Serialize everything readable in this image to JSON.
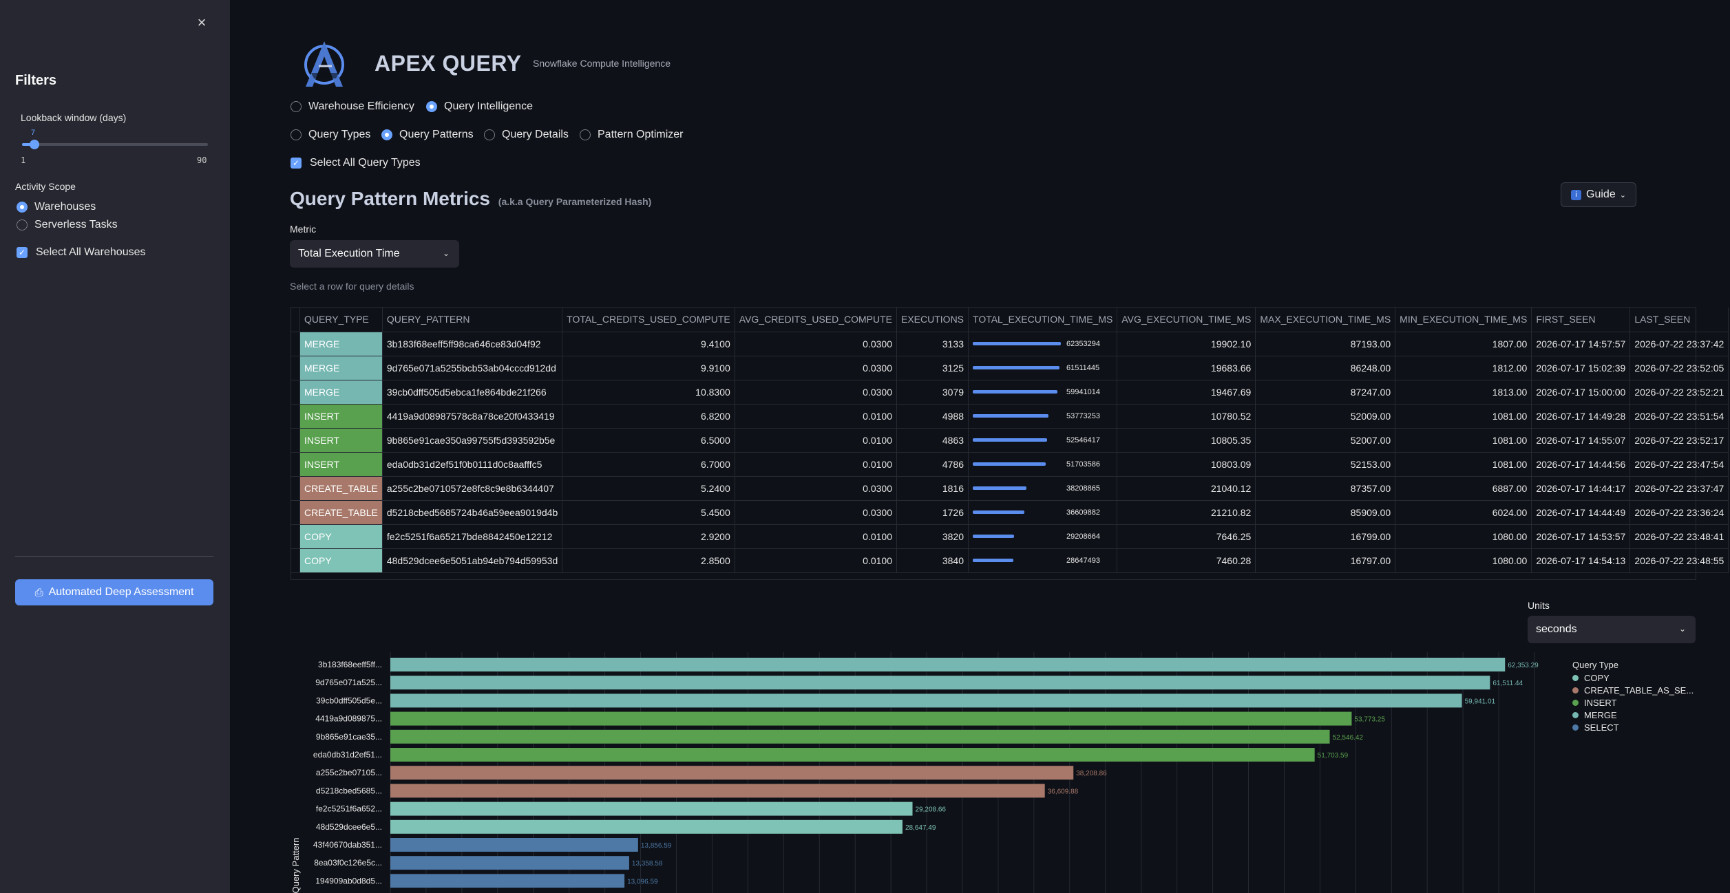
{
  "sidebar": {
    "close_icon": "×",
    "title": "Filters",
    "lookback": {
      "label": "Lookback window (days)",
      "value": 7,
      "value_text": "7",
      "min": 1,
      "min_text": "1",
      "max": 90,
      "max_text": "90"
    },
    "scope": {
      "label": "Activity Scope",
      "options": [
        "Warehouses",
        "Serverless Tasks"
      ],
      "selected": "Warehouses"
    },
    "select_all_warehouses": "Select All Warehouses",
    "deep_assessment_button": "Automated Deep Assessment"
  },
  "header": {
    "title": "APEX QUERY",
    "subtitle": "Snowflake Compute Intelligence"
  },
  "nav": {
    "main_options": [
      "Warehouse Efficiency",
      "Query Intelligence"
    ],
    "main_selected": "Query Intelligence",
    "sub_options": [
      "Query Types",
      "Query Patterns",
      "Query Details",
      "Pattern Optimizer"
    ],
    "sub_selected": "Query Patterns",
    "select_all_query_types": "Select All Query Types"
  },
  "section": {
    "title": "Query Pattern Metrics",
    "title_note": "(a.k.a Query Parameterized Hash)",
    "guide_label": "Guide",
    "guide_icon": "i",
    "metric_label": "Metric",
    "metric_value": "Total Execution Time",
    "hint": "Select a row for query details"
  },
  "colors": {
    "COPY": "#7fc3b6",
    "CREATE_TABLE_AS_SELECT": "#a8796a",
    "INSERT": "#59a14f",
    "MERGE": "#76b7b2",
    "SELECT": "#4e79a7",
    "accent": "#5b8def"
  },
  "table": {
    "columns": [
      "QUERY_TYPE",
      "QUERY_PATTERN",
      "TOTAL_CREDITS_USED_COMPUTE",
      "AVG_CREDITS_USED_COMPUTE",
      "EXECUTIONS",
      "TOTAL_EXECUTION_TIME_MS",
      "AVG_EXECUTION_TIME_MS",
      "MAX_EXECUTION_TIME_MS",
      "MIN_EXECUTION_TIME_MS",
      "FIRST_SEEN",
      "LAST_SEEN"
    ],
    "bar_max": 62353294,
    "rows": [
      {
        "type": "MERGE",
        "type_key": "MERGE",
        "pattern": "3b183f68eeff5ff98ca646ce83d04f92",
        "total_credits": "9.4100",
        "avg_credits": "0.0300",
        "executions": "3133",
        "total_ms": 62353294,
        "total_ms_text": "62353294",
        "avg_ms": "19902.10",
        "max_ms": "87193.00",
        "min_ms": "1807.00",
        "first_seen": "2026-07-17 14:57:57",
        "last_seen": "2026-07-22 23:37:42"
      },
      {
        "type": "MERGE",
        "type_key": "MERGE",
        "pattern": "9d765e071a5255bcb53ab04cccd912dd",
        "total_credits": "9.9100",
        "avg_credits": "0.0300",
        "executions": "3125",
        "total_ms": 61511445,
        "total_ms_text": "61511445",
        "avg_ms": "19683.66",
        "max_ms": "86248.00",
        "min_ms": "1812.00",
        "first_seen": "2026-07-17 15:02:39",
        "last_seen": "2026-07-22 23:52:05"
      },
      {
        "type": "MERGE",
        "type_key": "MERGE",
        "pattern": "39cb0dff505d5ebca1fe864bde21f266",
        "total_credits": "10.8300",
        "avg_credits": "0.0300",
        "executions": "3079",
        "total_ms": 59941014,
        "total_ms_text": "59941014",
        "avg_ms": "19467.69",
        "max_ms": "87247.00",
        "min_ms": "1813.00",
        "first_seen": "2026-07-17 15:00:00",
        "last_seen": "2026-07-22 23:52:21"
      },
      {
        "type": "INSERT",
        "type_key": "INSERT",
        "pattern": "4419a9d08987578c8a78ce20f0433419",
        "total_credits": "6.8200",
        "avg_credits": "0.0100",
        "executions": "4988",
        "total_ms": 53773253,
        "total_ms_text": "53773253",
        "avg_ms": "10780.52",
        "max_ms": "52009.00",
        "min_ms": "1081.00",
        "first_seen": "2026-07-17 14:49:28",
        "last_seen": "2026-07-22 23:51:54"
      },
      {
        "type": "INSERT",
        "type_key": "INSERT",
        "pattern": "9b865e91cae350a99755f5d393592b5e",
        "total_credits": "6.5000",
        "avg_credits": "0.0100",
        "executions": "4863",
        "total_ms": 52546417,
        "total_ms_text": "52546417",
        "avg_ms": "10805.35",
        "max_ms": "52007.00",
        "min_ms": "1081.00",
        "first_seen": "2026-07-17 14:55:07",
        "last_seen": "2026-07-22 23:52:17"
      },
      {
        "type": "INSERT",
        "type_key": "INSERT",
        "pattern": "eda0db31d2ef51f0b0111d0c8aafffc5",
        "total_credits": "6.7000",
        "avg_credits": "0.0100",
        "executions": "4786",
        "total_ms": 51703586,
        "total_ms_text": "51703586",
        "avg_ms": "10803.09",
        "max_ms": "52153.00",
        "min_ms": "1081.00",
        "first_seen": "2026-07-17 14:44:56",
        "last_seen": "2026-07-22 23:47:54"
      },
      {
        "type": "CREATE_TABLE",
        "type_key": "CREATE_TABLE_AS_SELECT",
        "pattern": "a255c2be0710572e8fc8c9e8b6344407",
        "total_credits": "5.2400",
        "avg_credits": "0.0300",
        "executions": "1816",
        "total_ms": 38208865,
        "total_ms_text": "38208865",
        "avg_ms": "21040.12",
        "max_ms": "87357.00",
        "min_ms": "6887.00",
        "first_seen": "2026-07-17 14:44:17",
        "last_seen": "2026-07-22 23:37:47"
      },
      {
        "type": "CREATE_TABLE",
        "type_key": "CREATE_TABLE_AS_SELECT",
        "pattern": "d5218cbed5685724b46a59eea9019d4b",
        "total_credits": "5.4500",
        "avg_credits": "0.0300",
        "executions": "1726",
        "total_ms": 36609882,
        "total_ms_text": "36609882",
        "avg_ms": "21210.82",
        "max_ms": "85909.00",
        "min_ms": "6024.00",
        "first_seen": "2026-07-17 14:44:49",
        "last_seen": "2026-07-22 23:36:24"
      },
      {
        "type": "COPY",
        "type_key": "COPY",
        "pattern": "fe2c5251f6a65217bde8842450e12212",
        "total_credits": "2.9200",
        "avg_credits": "0.0100",
        "executions": "3820",
        "total_ms": 29208664,
        "total_ms_text": "29208664",
        "avg_ms": "7646.25",
        "max_ms": "16799.00",
        "min_ms": "1080.00",
        "first_seen": "2026-07-17 14:53:57",
        "last_seen": "2026-07-22 23:48:41"
      },
      {
        "type": "COPY",
        "type_key": "COPY",
        "pattern": "48d529dcee6e5051ab94eb794d59953d",
        "total_credits": "2.8500",
        "avg_credits": "0.0100",
        "executions": "3840",
        "total_ms": 28647493,
        "total_ms_text": "28647493",
        "avg_ms": "7460.28",
        "max_ms": "16797.00",
        "min_ms": "1080.00",
        "first_seen": "2026-07-17 14:54:13",
        "last_seen": "2026-07-22 23:48:55"
      }
    ]
  },
  "units": {
    "label": "Units",
    "value": "seconds"
  },
  "chart_data": {
    "type": "bar",
    "orientation": "horizontal",
    "ylabel": "Query Pattern",
    "legend_title": "Query Type",
    "legend": [
      {
        "label": "COPY",
        "key": "COPY"
      },
      {
        "label": "CREATE_TABLE_AS_SE...",
        "key": "CREATE_TABLE_AS_SELECT"
      },
      {
        "label": "INSERT",
        "key": "INSERT"
      },
      {
        "label": "MERGE",
        "key": "MERGE"
      },
      {
        "label": "SELECT",
        "key": "SELECT"
      }
    ],
    "categories": [
      "3b183f68eeff5ff...",
      "9d765e071a525...",
      "39cb0dff505d5e...",
      "4419a9d089875...",
      "9b865e91cae35...",
      "eda0db31d2ef51...",
      "a255c2be07105...",
      "d5218cbed5685...",
      "fe2c5251f6a652...",
      "48d529dcee6e5...",
      "43f40670dab351...",
      "8ea03f0c126e5c...",
      "194909ab0d8d5..."
    ],
    "values": [
      62353.29,
      61511.44,
      59941.01,
      53773.25,
      52546.42,
      51703.59,
      38208.86,
      36609.88,
      29208.66,
      28647.49,
      13856.59,
      13358.58,
      13096.59
    ],
    "value_labels": [
      "62,353.29",
      "61,511.44",
      "59,941.01",
      "53,773.25",
      "52,546.42",
      "51,703.59",
      "38,208.86",
      "36,609.88",
      "29,208.66",
      "28,647.49",
      "13,856.59",
      "13,358.58",
      "13,096.59"
    ],
    "types": [
      "MERGE",
      "MERGE",
      "MERGE",
      "INSERT",
      "INSERT",
      "INSERT",
      "CREATE_TABLE_AS_SELECT",
      "CREATE_TABLE_AS_SELECT",
      "COPY",
      "COPY",
      "SELECT",
      "SELECT",
      "SELECT"
    ],
    "xlim": [
      0,
      64000
    ],
    "grid": true
  }
}
